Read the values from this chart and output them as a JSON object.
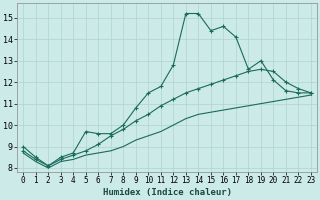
{
  "xlabel": "Humidex (Indice chaleur)",
  "bg_color": "#cceae8",
  "grid_color": "#b0d4d0",
  "line_color": "#1a6b5a",
  "xlim": [
    -0.5,
    23.5
  ],
  "ylim": [
    7.8,
    15.7
  ],
  "yticks": [
    8,
    9,
    10,
    11,
    12,
    13,
    14,
    15
  ],
  "xticks": [
    0,
    1,
    2,
    3,
    4,
    5,
    6,
    7,
    8,
    9,
    10,
    11,
    12,
    13,
    14,
    15,
    16,
    17,
    18,
    19,
    20,
    21,
    22,
    23
  ],
  "line1_x": [
    0,
    1,
    2,
    3,
    4,
    5,
    6,
    7,
    8,
    9,
    10,
    11,
    12,
    13,
    14,
    15,
    16,
    17,
    18,
    19,
    20,
    21,
    22,
    23
  ],
  "line1_y": [
    9.0,
    8.5,
    8.1,
    8.5,
    8.7,
    9.7,
    9.6,
    9.6,
    10.0,
    10.8,
    11.5,
    11.8,
    12.8,
    15.2,
    15.2,
    14.4,
    14.6,
    14.1,
    12.6,
    13.0,
    12.1,
    11.6,
    11.5,
    11.5
  ],
  "line2_x": [
    0,
    1,
    2,
    3,
    4,
    5,
    6,
    7,
    8,
    9,
    10,
    11,
    12,
    13,
    14,
    15,
    16,
    17,
    18,
    19,
    20,
    21,
    22,
    23
  ],
  "line2_y": [
    8.8,
    8.4,
    8.1,
    8.4,
    8.6,
    8.8,
    9.1,
    9.5,
    9.8,
    10.2,
    10.5,
    10.9,
    11.2,
    11.5,
    11.7,
    11.9,
    12.1,
    12.3,
    12.5,
    12.6,
    12.5,
    12.0,
    11.7,
    11.5
  ],
  "line3_x": [
    0,
    1,
    2,
    3,
    4,
    5,
    6,
    7,
    8,
    9,
    10,
    11,
    12,
    13,
    14,
    15,
    16,
    17,
    18,
    19,
    20,
    21,
    22,
    23
  ],
  "line3_y": [
    8.7,
    8.3,
    8.0,
    8.3,
    8.4,
    8.6,
    8.7,
    8.8,
    9.0,
    9.3,
    9.5,
    9.7,
    10.0,
    10.3,
    10.5,
    10.6,
    10.7,
    10.8,
    10.9,
    11.0,
    11.1,
    11.2,
    11.3,
    11.4
  ]
}
